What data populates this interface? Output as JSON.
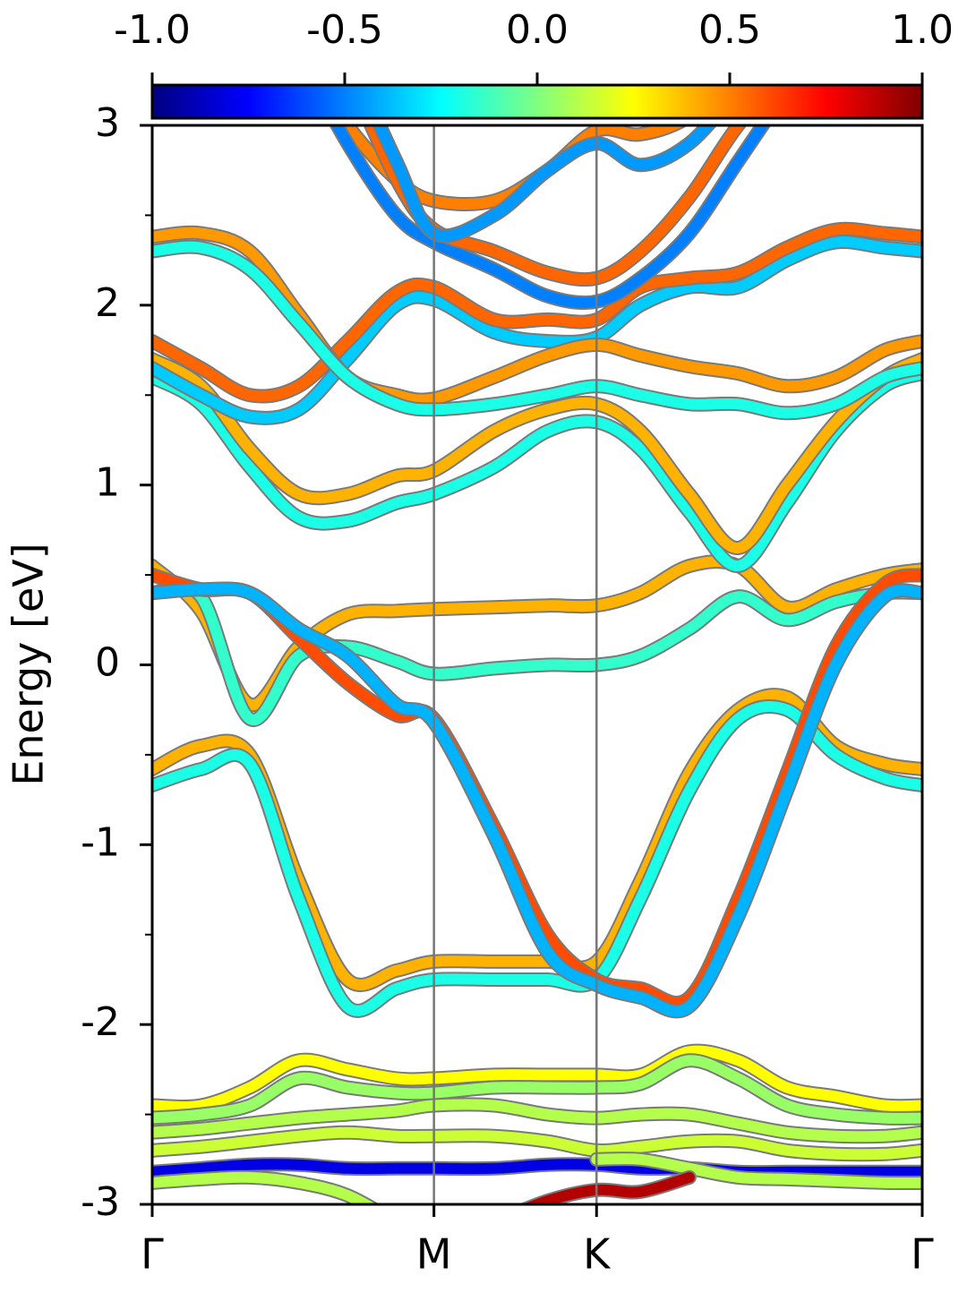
{
  "chart_data": {
    "type": "band_structure",
    "ylabel": "Energy [eV]",
    "x": [
      0,
      0.1,
      0.2,
      0.3,
      0.4,
      0.5,
      0.577,
      0.7,
      0.81,
      0.91,
      1.0,
      1.1,
      1.2,
      1.3,
      1.4,
      1.5,
      1.577
    ],
    "xlim": [
      0,
      1.577
    ],
    "xticks": [
      {
        "value": 0,
        "label": "Γ"
      },
      {
        "value": 0.577,
        "label": "M"
      },
      {
        "value": 0.91,
        "label": "K"
      },
      {
        "value": 1.577,
        "label": "Γ"
      }
    ],
    "xgrid": true,
    "ylim": [
      -3,
      3
    ],
    "yticks": [
      -3,
      -2,
      -1,
      0,
      1,
      2,
      3
    ],
    "yminorticks": [
      -2.5,
      -1.5,
      -0.5,
      0.5,
      1.5,
      2.5
    ],
    "clim": [
      -1,
      1
    ],
    "cticks": [
      {
        "value": -1,
        "label": "-1.0"
      },
      -0.5,
      {
        "value": 0,
        "label": "0.0"
      },
      0.5,
      {
        "value": 1,
        "label": "1.0"
      }
    ],
    "colormap": "jet",
    "series": [
      {
        "spin": 0.4,
        "values": [
          0.55,
          0.3,
          -0.22,
          0.1,
          0.28,
          0.3,
          0.31,
          0.32,
          0.33,
          0.33,
          0.4,
          0.55,
          0.55,
          0.32,
          0.42,
          0.5,
          0.53
        ]
      },
      {
        "spin": -0.15,
        "values": [
          0.4,
          0.38,
          -0.3,
          0.05,
          0.1,
          0.02,
          -0.05,
          -0.02,
          0.0,
          0.0,
          0.05,
          0.2,
          0.38,
          0.25,
          0.35,
          0.4,
          0.4
        ]
      },
      {
        "spin": 0.4,
        "values": [
          -0.58,
          -0.45,
          -0.5,
          -1.2,
          -1.75,
          -1.7,
          -1.65,
          -1.65,
          -1.65,
          -1.65,
          -1.2,
          -0.6,
          -0.25,
          -0.18,
          -0.45,
          -0.55,
          -0.58
        ]
      },
      {
        "spin": -0.2,
        "values": [
          -0.67,
          -0.58,
          -0.55,
          -1.3,
          -1.9,
          -1.8,
          -1.75,
          -1.75,
          -1.75,
          -1.75,
          -1.3,
          -0.7,
          -0.3,
          -0.25,
          -0.5,
          -0.63,
          -0.67
        ]
      },
      {
        "spin": 0.6,
        "values": [
          0.5,
          0.42,
          0.4,
          0.15,
          -0.1,
          -0.28,
          -0.3,
          -0.9,
          -1.5,
          -1.75,
          -1.8,
          -1.85,
          -1.3,
          -0.6,
          0.1,
          0.45,
          0.5
        ]
      },
      {
        "spin": -0.4,
        "values": [
          0.4,
          0.42,
          0.4,
          0.2,
          0.05,
          -0.22,
          -0.32,
          -0.95,
          -1.6,
          -1.78,
          -1.85,
          -1.9,
          -1.4,
          -0.7,
          0.0,
          0.38,
          0.4
        ]
      },
      {
        "spin": -0.2,
        "values": [
          1.6,
          1.45,
          1.1,
          0.82,
          0.8,
          0.9,
          0.95,
          1.1,
          1.3,
          1.35,
          1.2,
          0.85,
          0.55,
          0.9,
          1.3,
          1.55,
          1.62
        ]
      },
      {
        "spin": 0.4,
        "values": [
          1.7,
          1.55,
          1.2,
          0.95,
          0.95,
          1.05,
          1.08,
          1.3,
          1.42,
          1.45,
          1.3,
          0.95,
          0.65,
          1.0,
          1.35,
          1.6,
          1.7
        ]
      },
      {
        "spin": -0.35,
        "values": [
          1.65,
          1.5,
          1.38,
          1.42,
          1.7,
          2.0,
          2.03,
          1.85,
          1.8,
          1.82,
          2.0,
          2.1,
          2.1,
          2.25,
          2.35,
          2.32,
          2.3
        ]
      },
      {
        "spin": 0.55,
        "values": [
          1.8,
          1.65,
          1.5,
          1.55,
          1.8,
          2.07,
          2.1,
          1.92,
          1.92,
          1.92,
          2.1,
          2.15,
          2.18,
          2.32,
          2.42,
          2.4,
          2.38
        ]
      },
      {
        "spin": 0.45,
        "values": [
          2.38,
          2.4,
          2.3,
          1.95,
          1.6,
          1.5,
          1.48,
          1.6,
          1.72,
          1.78,
          1.72,
          1.66,
          1.62,
          1.55,
          1.6,
          1.75,
          1.8
        ]
      },
      {
        "spin": -0.2,
        "values": [
          2.3,
          2.32,
          2.2,
          1.9,
          1.6,
          1.45,
          1.42,
          1.45,
          1.5,
          1.55,
          1.5,
          1.45,
          1.45,
          1.4,
          1.45,
          1.6,
          1.65
        ]
      },
      {
        "spin": 0.5,
        "values": [
          null,
          null,
          null,
          3.4,
          3.0,
          2.7,
          2.58,
          2.58,
          2.75,
          2.97,
          2.95,
          3.05,
          3.3,
          null,
          null,
          null,
          null
        ]
      },
      {
        "spin": -0.5,
        "values": [
          null,
          null,
          null,
          3.4,
          2.9,
          2.5,
          2.35,
          2.2,
          2.05,
          2.02,
          2.15,
          2.4,
          2.8,
          3.2,
          null,
          null,
          null
        ]
      },
      {
        "spin": 0.55,
        "values": [
          null,
          null,
          null,
          null,
          3.3,
          2.7,
          2.42,
          2.3,
          2.18,
          2.15,
          2.3,
          2.6,
          3.0,
          3.3,
          null,
          null,
          null
        ]
      },
      {
        "spin": -0.45,
        "values": [
          null,
          null,
          null,
          null,
          3.4,
          2.8,
          2.4,
          2.5,
          2.75,
          2.9,
          2.78,
          2.9,
          3.2,
          null,
          null,
          null,
          null
        ]
      },
      {
        "spin": 0.25,
        "values": [
          -2.45,
          -2.45,
          -2.35,
          -2.2,
          -2.25,
          -2.3,
          -2.3,
          -2.28,
          -2.28,
          -2.28,
          -2.28,
          -2.15,
          -2.2,
          -2.35,
          -2.4,
          -2.45,
          -2.45
        ]
      },
      {
        "spin": 0.05,
        "values": [
          -2.52,
          -2.5,
          -2.45,
          -2.3,
          -2.35,
          -2.38,
          -2.38,
          -2.35,
          -2.35,
          -2.35,
          -2.33,
          -2.2,
          -2.3,
          -2.45,
          -2.5,
          -2.52,
          -2.52
        ]
      },
      {
        "spin": 0.1,
        "values": [
          -2.6,
          -2.58,
          -2.55,
          -2.52,
          -2.5,
          -2.48,
          -2.45,
          -2.45,
          -2.5,
          -2.52,
          -2.5,
          -2.5,
          -2.55,
          -2.6,
          -2.62,
          -2.62,
          -2.6
        ]
      },
      {
        "spin": 0.15,
        "values": [
          -2.7,
          -2.68,
          -2.65,
          -2.62,
          -2.6,
          -2.62,
          -2.62,
          -2.62,
          -2.65,
          -2.7,
          -2.68,
          -2.65,
          -2.65,
          -2.7,
          -2.72,
          -2.72,
          -2.7
        ]
      },
      {
        "spin": -0.8,
        "values": [
          -2.82,
          -2.8,
          -2.78,
          -2.78,
          -2.8,
          -2.8,
          -2.8,
          -2.8,
          -2.78,
          -2.78,
          -2.8,
          -2.8,
          -2.82,
          -2.82,
          -2.82,
          -2.82,
          -2.82
        ]
      },
      {
        "spin": 0.1,
        "values": [
          -2.88,
          -2.86,
          -2.85,
          -2.88,
          -2.95,
          -3.1,
          null,
          null,
          null,
          -2.75,
          -2.75,
          -2.8,
          -2.85,
          -2.86,
          -2.87,
          -2.88,
          -2.88
        ]
      },
      {
        "spin": 0.9,
        "values": [
          null,
          null,
          null,
          null,
          null,
          null,
          null,
          -3.1,
          -2.98,
          -2.92,
          -2.93,
          -2.85,
          null,
          null,
          null,
          null,
          null
        ]
      }
    ]
  }
}
